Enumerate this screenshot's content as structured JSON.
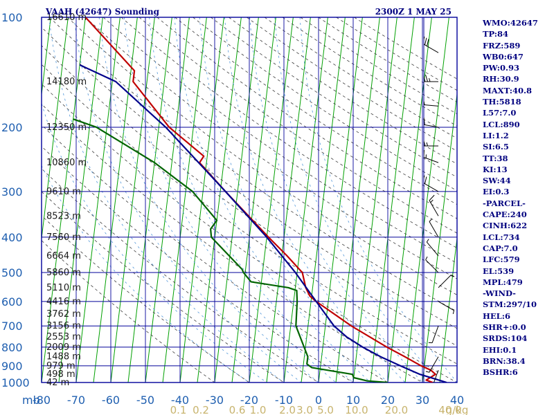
{
  "header": {
    "title": "VAAH (42647) Sounding",
    "time": "2300Z  1 MAY 25"
  },
  "chart_data": {
    "type": "line",
    "subtype": "skew-T log-P diagram",
    "y_axis": {
      "scale": "log",
      "ticks": [
        100,
        200,
        300,
        400,
        500,
        600,
        700,
        800,
        900,
        1000
      ],
      "unit_label": "mb",
      "ylim": [
        1000,
        100
      ]
    },
    "x_axis": {
      "ticks": [
        -80,
        -70,
        -60,
        -50,
        -40,
        -30,
        -20,
        -10,
        0,
        10,
        20,
        30,
        40
      ],
      "xlim": [
        -80,
        40
      ],
      "skewed": true
    },
    "mixing_ratio_labels": [
      "0.1",
      "0.2",
      "0.6",
      "1.0",
      "2.0",
      "3.0",
      "5.0",
      "10.0",
      "20.0",
      "40.0"
    ],
    "mixing_ratio_unit": "g/kg",
    "height_labels": [
      {
        "p": 100,
        "text": "16610 m"
      },
      {
        "p": 150,
        "text": "14180 m"
      },
      {
        "p": 200,
        "text": "12350 m"
      },
      {
        "p": 250,
        "text": "10860 m"
      },
      {
        "p": 300,
        "text": "9610 m"
      },
      {
        "p": 350,
        "text": "8523 m"
      },
      {
        "p": 400,
        "text": "7560 m"
      },
      {
        "p": 450,
        "text": "6664 m"
      },
      {
        "p": 500,
        "text": "5860 m"
      },
      {
        "p": 550,
        "text": "5110 m"
      },
      {
        "p": 600,
        "text": "4416 m"
      },
      {
        "p": 650,
        "text": "3762 m"
      },
      {
        "p": 700,
        "text": "3156 m"
      },
      {
        "p": 750,
        "text": "2553 m"
      },
      {
        "p": 800,
        "text": "2009 m"
      },
      {
        "p": 850,
        "text": "1488 m"
      },
      {
        "p": 900,
        "text": "979 m"
      },
      {
        "p": 950,
        "text": "498 m"
      },
      {
        "p": 1000,
        "text": "42 m"
      }
    ],
    "series": [
      {
        "name": "temperature",
        "color": "#c00000",
        "points": [
          {
            "p": 1000,
            "t": 33.0
          },
          {
            "p": 985,
            "t": 31.0
          },
          {
            "p": 950,
            "t": 33.5
          },
          {
            "p": 925,
            "t": 32.0
          },
          {
            "p": 900,
            "t": 29.0
          },
          {
            "p": 850,
            "t": 24.0
          },
          {
            "p": 800,
            "t": 18.5
          },
          {
            "p": 700,
            "t": 7.5
          },
          {
            "p": 600,
            "t": -3.5
          },
          {
            "p": 580,
            "t": -5.5
          },
          {
            "p": 550,
            "t": -7.0
          },
          {
            "p": 500,
            "t": -8.5
          },
          {
            "p": 450,
            "t": -13.5
          },
          {
            "p": 400,
            "t": -19.5
          },
          {
            "p": 300,
            "t": -33.5
          },
          {
            "p": 250,
            "t": -42.0
          },
          {
            "p": 240,
            "t": -41.0
          },
          {
            "p": 200,
            "t": -52.0
          },
          {
            "p": 150,
            "t": -64.0
          },
          {
            "p": 140,
            "t": -64.0
          },
          {
            "p": 100,
            "t": -80.0
          }
        ]
      },
      {
        "name": "dewpoint",
        "color": "#006400",
        "points": [
          {
            "p": 1000,
            "t": 20.0
          },
          {
            "p": 990,
            "t": 14.0
          },
          {
            "p": 970,
            "t": 10.0
          },
          {
            "p": 950,
            "t": 9.5
          },
          {
            "p": 910,
            "t": -2.5
          },
          {
            "p": 890,
            "t": -4.0
          },
          {
            "p": 850,
            "t": -4.0
          },
          {
            "p": 700,
            "t": -8.5
          },
          {
            "p": 600,
            "t": -9.0
          },
          {
            "p": 560,
            "t": -9.5
          },
          {
            "p": 550,
            "t": -12.0
          },
          {
            "p": 530,
            "t": -23.0
          },
          {
            "p": 500,
            "t": -25.5
          },
          {
            "p": 490,
            "t": -26.0
          },
          {
            "p": 400,
            "t": -36.0
          },
          {
            "p": 380,
            "t": -36.5
          },
          {
            "p": 360,
            "t": -35.0
          },
          {
            "p": 300,
            "t": -43.0
          },
          {
            "p": 250,
            "t": -55.0
          },
          {
            "p": 200,
            "t": -73.0
          },
          {
            "p": 190,
            "t": -80.0
          }
        ]
      },
      {
        "name": "parcel",
        "color": "#00008b",
        "points": [
          {
            "p": 1000,
            "t": 37.0
          },
          {
            "p": 950,
            "t": 29.0
          },
          {
            "p": 900,
            "t": 23.0
          },
          {
            "p": 850,
            "t": 17.0
          },
          {
            "p": 800,
            "t": 11.5
          },
          {
            "p": 750,
            "t": 6.5
          },
          {
            "p": 700,
            "t": 2.5
          },
          {
            "p": 600,
            "t": -3.5
          },
          {
            "p": 500,
            "t": -10.5
          },
          {
            "p": 400,
            "t": -20.0
          },
          {
            "p": 300,
            "t": -33.5
          },
          {
            "p": 200,
            "t": -53.0
          },
          {
            "p": 150,
            "t": -69.0
          },
          {
            "p": 135,
            "t": -80.0
          }
        ]
      }
    ],
    "wind_barbs": [
      {
        "p": 100,
        "dir": 310,
        "spd": 15
      },
      {
        "p": 125,
        "dir": 300,
        "spd": 30
      },
      {
        "p": 150,
        "dir": 270,
        "spd": 45
      },
      {
        "p": 175,
        "dir": 275,
        "spd": 55
      },
      {
        "p": 200,
        "dir": 280,
        "spd": 60
      },
      {
        "p": 225,
        "dir": 270,
        "spd": 35
      },
      {
        "p": 250,
        "dir": 290,
        "spd": 25
      },
      {
        "p": 300,
        "dir": 300,
        "spd": 20
      },
      {
        "p": 350,
        "dir": 330,
        "spd": 15
      },
      {
        "p": 400,
        "dir": 330,
        "spd": 5
      },
      {
        "p": 450,
        "dir": 320,
        "spd": 5
      },
      {
        "p": 500,
        "dir": 315,
        "spd": 5
      },
      {
        "p": 550,
        "dir": 45,
        "spd": 5
      },
      {
        "p": 600,
        "dir": 120,
        "spd": 5
      },
      {
        "p": 700,
        "dir": 200,
        "spd": 5
      },
      {
        "p": 850,
        "dir": 210,
        "spd": 5
      },
      {
        "p": 925,
        "dir": 200,
        "spd": 5
      },
      {
        "p": 1000,
        "dir": 180,
        "spd": 5
      }
    ]
  },
  "sidebar": {
    "items": [
      "WMO:42647",
      "TP:84",
      "FRZ:589",
      "WB0:647",
      "PW:0.93",
      "RH:30.9",
      "MAXT:40.8",
      "TH:5818",
      "L57:7.0",
      "LCL:890",
      "LI:1.2",
      "SI:6.5",
      "TT:38",
      "KI:13",
      "SW:44",
      "EI:0.3",
      "-PARCEL-",
      "CAPE:240",
      "CINH:622",
      "LCL:734",
      "CAP:7.0",
      "LFC:579",
      "EL:539",
      "MPL:479",
      "-WIND-",
      "STM:297/10",
      "HEL:6",
      "SHR+:0.0",
      "SRDS:104",
      "EHI:0.1",
      "BRN:38.4",
      "BSHR:6"
    ]
  },
  "colors": {
    "frame": "#00009c",
    "isobar": "#000099",
    "isotherm": "#00a000",
    "dry_adiabat": "#3a3a3a",
    "moist_adiabat": "#4f95d8",
    "label_blue": "#1f5fb0",
    "mixing_label": "#c8b46e",
    "title": "#00007f"
  }
}
